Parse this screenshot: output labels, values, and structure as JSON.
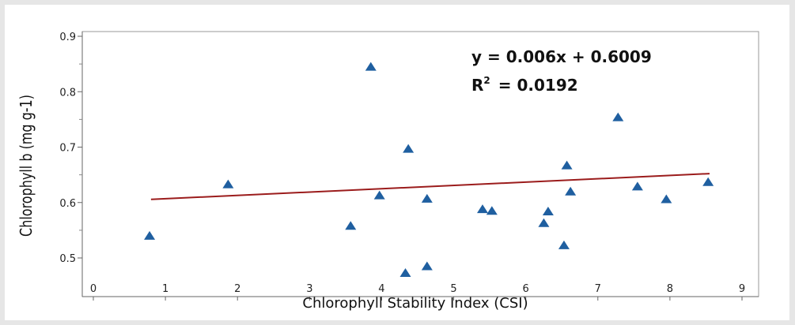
{
  "chart_data": {
    "type": "scatter",
    "xlabel": "Chlorophyll Stability Index (CSI)",
    "ylabel": "Chlorophyll b (mg g-1)",
    "xlim": [
      0,
      9
    ],
    "ylim": [
      0.47,
      0.9
    ],
    "x_ticks": [
      "0",
      "1",
      "2",
      "3",
      "4",
      "5",
      "6",
      "7",
      "8",
      "9"
    ],
    "y_ticks": [
      "0.5",
      "0.6",
      "0.7",
      "0.8",
      "0.9"
    ],
    "grid": false,
    "marker": "triangle",
    "marker_color": "#1f5fa0",
    "trendline_color": "#9b1c1c",
    "plot_background": "#ffffff",
    "frame_background": "#ffffff",
    "page_background": "#e6e6e6",
    "equation_text": "y = 0.006x + 0.6009",
    "r2_label": "R",
    "r2_sup": "2",
    "r2_value_text": "= 0.0192",
    "trendline": {
      "slope": 0.006,
      "intercept": 0.6009,
      "x_range": [
        0.8,
        8.55
      ]
    },
    "points": [
      {
        "x": 0.78,
        "y": 0.54
      },
      {
        "x": 1.87,
        "y": 0.633
      },
      {
        "x": 3.57,
        "y": 0.558
      },
      {
        "x": 3.85,
        "y": 0.845
      },
      {
        "x": 3.97,
        "y": 0.613
      },
      {
        "x": 4.33,
        "y": 0.473
      },
      {
        "x": 4.37,
        "y": 0.697
      },
      {
        "x": 4.63,
        "y": 0.607
      },
      {
        "x": 4.63,
        "y": 0.485
      },
      {
        "x": 5.4,
        "y": 0.588
      },
      {
        "x": 5.53,
        "y": 0.585
      },
      {
        "x": 6.25,
        "y": 0.563
      },
      {
        "x": 6.31,
        "y": 0.584
      },
      {
        "x": 6.53,
        "y": 0.523
      },
      {
        "x": 6.57,
        "y": 0.667
      },
      {
        "x": 6.62,
        "y": 0.62
      },
      {
        "x": 7.28,
        "y": 0.754
      },
      {
        "x": 7.55,
        "y": 0.629
      },
      {
        "x": 7.95,
        "y": 0.606
      },
      {
        "x": 8.53,
        "y": 0.637
      }
    ]
  }
}
